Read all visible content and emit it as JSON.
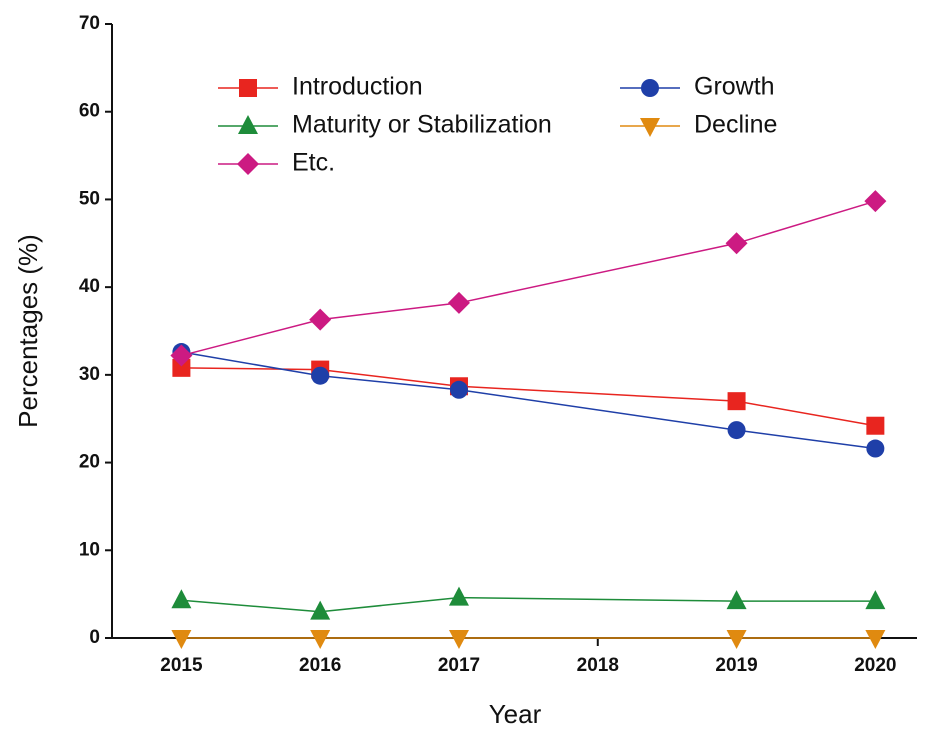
{
  "chart_data": {
    "type": "line",
    "xlabel": "Year",
    "ylabel": "Percentages (%)",
    "x": [
      2015,
      2016,
      2017,
      2019,
      2020
    ],
    "xlim": [
      2014.5,
      2020.3
    ],
    "xticks": [
      2015,
      2016,
      2017,
      2018,
      2019,
      2020
    ],
    "ylim": [
      0,
      70
    ],
    "yticks": [
      0,
      10,
      20,
      30,
      40,
      50,
      60,
      70
    ],
    "series": [
      {
        "name": "Introduction",
        "color": "#e8251f",
        "marker": "square",
        "values": [
          30.8,
          30.6,
          28.7,
          27.0,
          24.2
        ]
      },
      {
        "name": "Growth",
        "color": "#1f3fa8",
        "marker": "circle",
        "values": [
          32.6,
          29.9,
          28.3,
          23.7,
          21.6
        ]
      },
      {
        "name": "Maturity or Stabilization",
        "color": "#1e8c3a",
        "marker": "triangle-up",
        "values": [
          4.3,
          3.0,
          4.6,
          4.2,
          4.2
        ]
      },
      {
        "name": "Decline",
        "color": "#e08a10",
        "marker": "triangle-down",
        "values": [
          0,
          0,
          0,
          0,
          0
        ]
      },
      {
        "name": "Etc.",
        "color": "#cc1a82",
        "marker": "diamond",
        "values": [
          32.2,
          36.3,
          38.2,
          45.0,
          49.8
        ]
      }
    ]
  }
}
